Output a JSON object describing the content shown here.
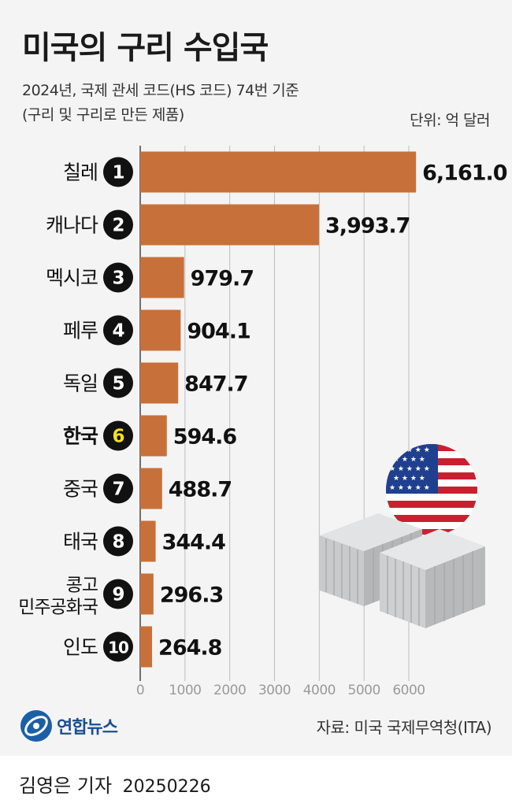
{
  "header": {
    "title": "미국의 구리 수입국",
    "subtitle_line1": "2024년, 국제 관세 코드(HS 코드) 74번 기준",
    "subtitle_line2": "(구리 및 구리로 만든 제품)",
    "unit": "단위: 억 달러"
  },
  "chart_data": {
    "type": "bar",
    "orientation": "horizontal",
    "categories": [
      "칠레",
      "캐나다",
      "멕시코",
      "페루",
      "독일",
      "한국",
      "중국",
      "태국",
      "콩고 민주공화국",
      "인도"
    ],
    "category_lines": [
      [
        "칠레"
      ],
      [
        "캐나다"
      ],
      [
        "멕시코"
      ],
      [
        "페루"
      ],
      [
        "독일"
      ],
      [
        "한국"
      ],
      [
        "중국"
      ],
      [
        "태국"
      ],
      [
        "콩고",
        "민주공화국"
      ],
      [
        "인도"
      ]
    ],
    "ranks": [
      "1",
      "2",
      "3",
      "4",
      "5",
      "6",
      "7",
      "8",
      "9",
      "10"
    ],
    "values": [
      6161.0,
      3993.7,
      979.7,
      904.1,
      847.7,
      594.6,
      488.7,
      344.4,
      296.3,
      264.8
    ],
    "value_labels": [
      "6,161.0",
      "3,993.7",
      "979.7",
      "904.1",
      "847.7",
      "594.6",
      "488.7",
      "344.4",
      "296.3",
      "264.8"
    ],
    "highlight": "한국",
    "xlim": [
      0,
      6000
    ],
    "x_ticks": [
      "0",
      "1000",
      "2000",
      "3000",
      "4000",
      "5000",
      "6000"
    ],
    "grid": true,
    "colors": {
      "bar": "#c8703a",
      "highlight_rank": "#f5e11b",
      "rank_circle": "#111111",
      "grid": "#bdbdbd"
    }
  },
  "footer": {
    "logo_text": "연합뉴스",
    "source": "자료: 미국 국제무역청(ITA)",
    "reporter": "김영은 기자",
    "date": "20250226"
  },
  "illustration": {
    "icons": [
      "us-flag-icon",
      "shipping-container-icon"
    ],
    "colors": {
      "flag_red": "#c8202f",
      "flag_blue": "#1f3f8f",
      "container": "#bfc1c3"
    }
  }
}
